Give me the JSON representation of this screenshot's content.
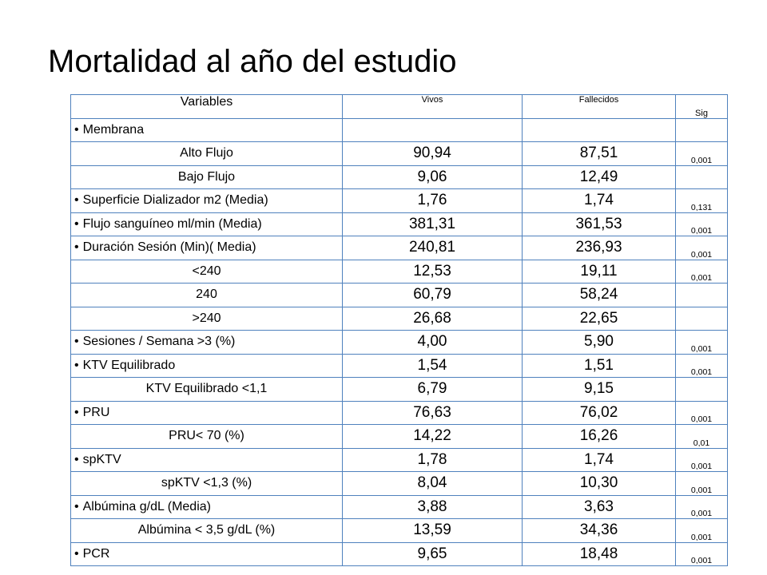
{
  "title": "Mortalidad al año del estudio",
  "table": {
    "headers": {
      "variable": "Variables",
      "vivos": "Vivos",
      "fallecidos": "Fallecidos",
      "sig": "Sig"
    },
    "rows": [
      {
        "label": "Membrana",
        "bullet": true,
        "vivos": "",
        "fallecidos": "",
        "sig": ""
      },
      {
        "label": "Alto Flujo",
        "bullet": false,
        "vivos": "90,94",
        "fallecidos": "87,51",
        "sig": "0,001"
      },
      {
        "label": "Bajo Flujo",
        "bullet": false,
        "vivos": "9,06",
        "fallecidos": "12,49",
        "sig": ""
      },
      {
        "label": "Superficie Dializador  m2 (Media)",
        "bullet": true,
        "vivos": "1,76",
        "fallecidos": "1,74",
        "sig": "0,131"
      },
      {
        "label": "Flujo sanguíneo ml/min (Media)",
        "bullet": true,
        "vivos": "381,31",
        "fallecidos": "361,53",
        "sig": "0,001"
      },
      {
        "label": "Duración Sesión (Min)( Media)",
        "bullet": true,
        "vivos": "240,81",
        "fallecidos": "236,93",
        "sig": "0,001"
      },
      {
        "label": "<240",
        "bullet": false,
        "vivos": "12,53",
        "fallecidos": "19,11",
        "sig": "0,001"
      },
      {
        "label": "240",
        "bullet": false,
        "vivos": "60,79",
        "fallecidos": "58,24",
        "sig": ""
      },
      {
        "label": ">240",
        "bullet": false,
        "vivos": "26,68",
        "fallecidos": "22,65",
        "sig": ""
      },
      {
        "label": "Sesiones / Semana >3 (%)",
        "bullet": true,
        "vivos": "4,00",
        "fallecidos": "5,90",
        "sig": "0,001"
      },
      {
        "label": "KTV Equilibrado",
        "bullet": true,
        "vivos": "1,54",
        "fallecidos": "1,51",
        "sig": "0,001"
      },
      {
        "label": "KTV Equilibrado <1,1",
        "bullet": false,
        "vivos": "6,79",
        "fallecidos": "9,15",
        "sig": ""
      },
      {
        "label": "PRU",
        "bullet": true,
        "vivos": "76,63",
        "fallecidos": "76,02",
        "sig": "0,001"
      },
      {
        "label": "PRU< 70 (%)",
        "bullet": false,
        "vivos": "14,22",
        "fallecidos": "16,26",
        "sig": "0,01"
      },
      {
        "label": "spKTV",
        "bullet": true,
        "vivos": "1,78",
        "fallecidos": "1,74",
        "sig": "0,001"
      },
      {
        "label": "spKTV <1,3 (%)",
        "bullet": false,
        "vivos": "8,04",
        "fallecidos": "10,30",
        "sig": "0,001"
      },
      {
        "label": "Albúmina g/dL (Media)",
        "bullet": true,
        "vivos": "3,88",
        "fallecidos": "3,63",
        "sig": "0,001"
      },
      {
        "label": "Albúmina < 3,5 g/dL (%)",
        "bullet": false,
        "vivos": "13,59",
        "fallecidos": "34,36",
        "sig": "0,001"
      },
      {
        "label": "PCR",
        "bullet": true,
        "vivos": "9,65",
        "fallecidos": "18,48",
        "sig": "0,001"
      }
    ]
  }
}
